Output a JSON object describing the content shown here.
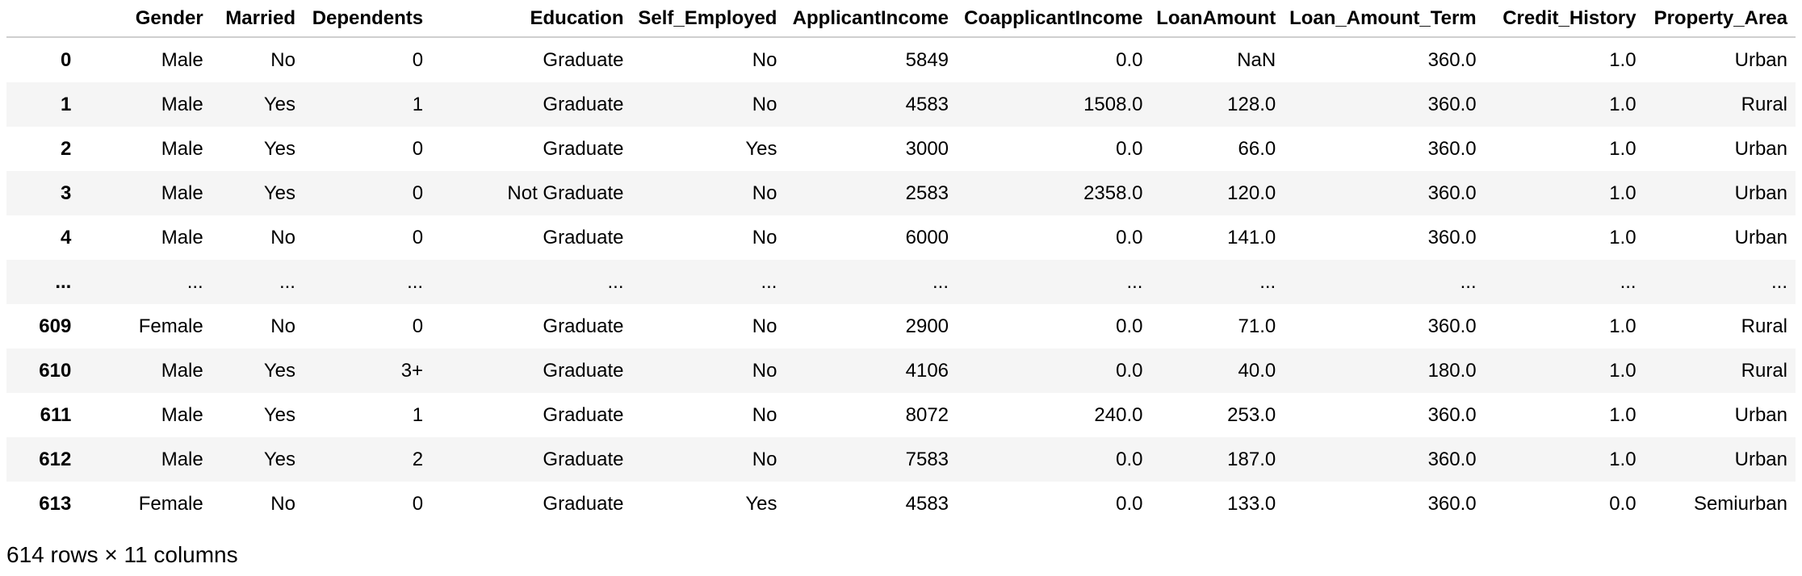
{
  "table": {
    "index_header": "",
    "columns": [
      "Gender",
      "Married",
      "Dependents",
      "Education",
      "Self_Employed",
      "ApplicantIncome",
      "CoapplicantIncome",
      "LoanAmount",
      "Loan_Amount_Term",
      "Credit_History",
      "Property_Area"
    ],
    "rows": [
      {
        "index": "0",
        "cells": [
          "Male",
          "No",
          "0",
          "Graduate",
          "No",
          "5849",
          "0.0",
          "NaN",
          "360.0",
          "1.0",
          "Urban"
        ]
      },
      {
        "index": "1",
        "cells": [
          "Male",
          "Yes",
          "1",
          "Graduate",
          "No",
          "4583",
          "1508.0",
          "128.0",
          "360.0",
          "1.0",
          "Rural"
        ]
      },
      {
        "index": "2",
        "cells": [
          "Male",
          "Yes",
          "0",
          "Graduate",
          "Yes",
          "3000",
          "0.0",
          "66.0",
          "360.0",
          "1.0",
          "Urban"
        ]
      },
      {
        "index": "3",
        "cells": [
          "Male",
          "Yes",
          "0",
          "Not Graduate",
          "No",
          "2583",
          "2358.0",
          "120.0",
          "360.0",
          "1.0",
          "Urban"
        ]
      },
      {
        "index": "4",
        "cells": [
          "Male",
          "No",
          "0",
          "Graduate",
          "No",
          "6000",
          "0.0",
          "141.0",
          "360.0",
          "1.0",
          "Urban"
        ]
      },
      {
        "index": "...",
        "cells": [
          "...",
          "...",
          "...",
          "...",
          "...",
          "...",
          "...",
          "...",
          "...",
          "...",
          "..."
        ]
      },
      {
        "index": "609",
        "cells": [
          "Female",
          "No",
          "0",
          "Graduate",
          "No",
          "2900",
          "0.0",
          "71.0",
          "360.0",
          "1.0",
          "Rural"
        ]
      },
      {
        "index": "610",
        "cells": [
          "Male",
          "Yes",
          "3+",
          "Graduate",
          "No",
          "4106",
          "0.0",
          "40.0",
          "180.0",
          "1.0",
          "Rural"
        ]
      },
      {
        "index": "611",
        "cells": [
          "Male",
          "Yes",
          "1",
          "Graduate",
          "No",
          "8072",
          "240.0",
          "253.0",
          "360.0",
          "1.0",
          "Urban"
        ]
      },
      {
        "index": "612",
        "cells": [
          "Male",
          "Yes",
          "2",
          "Graduate",
          "No",
          "7583",
          "0.0",
          "187.0",
          "360.0",
          "1.0",
          "Urban"
        ]
      },
      {
        "index": "613",
        "cells": [
          "Female",
          "No",
          "0",
          "Graduate",
          "Yes",
          "4583",
          "0.0",
          "133.0",
          "360.0",
          "0.0",
          "Semiurban"
        ]
      }
    ]
  },
  "shape_text": "614 rows × 11 columns"
}
